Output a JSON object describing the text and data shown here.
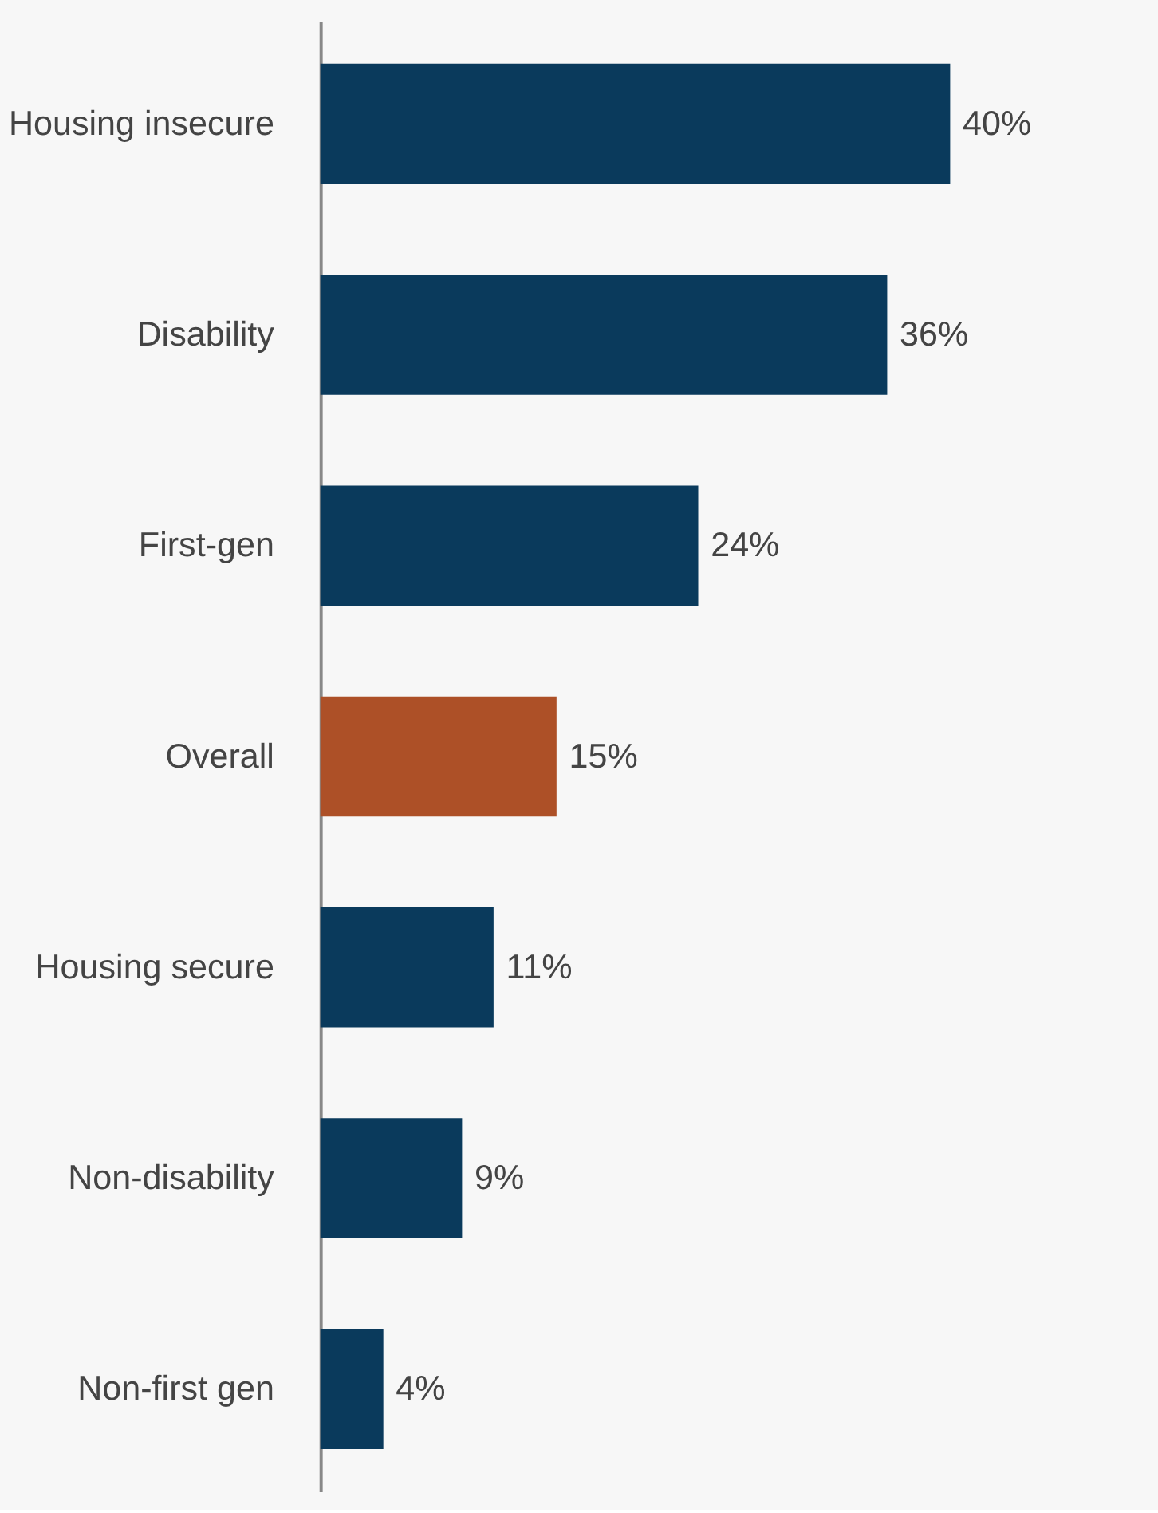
{
  "chart_data": {
    "type": "bar",
    "orientation": "horizontal",
    "categories": [
      "Housing insecure",
      "Disability",
      "First-gen",
      "Overall",
      "Housing secure",
      "Non-disability",
      "Non-first gen"
    ],
    "values": [
      40,
      36,
      24,
      15,
      11,
      9,
      4
    ],
    "colors": [
      "#0a3a5c",
      "#0a3a5c",
      "#0a3a5c",
      "#ad5027",
      "#0a3a5c",
      "#0a3a5c",
      "#0a3a5c"
    ],
    "value_labels": [
      "40%",
      "36%",
      "24%",
      "15%",
      "11%",
      "9%",
      "4%"
    ],
    "tick_labels": "y"
  }
}
